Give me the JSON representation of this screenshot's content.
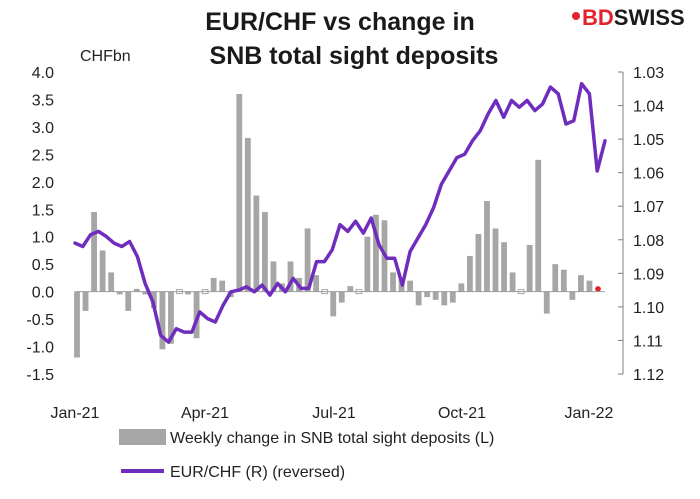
{
  "logo": {
    "text": "BDSWISS",
    "prefix": "BD",
    "suffix": "SWISS",
    "mark_color": "#e3232c",
    "text_color": "#1a1a1a"
  },
  "chart_data": {
    "type": "bar+line",
    "title_line1": "EUR/CHF vs change in",
    "title_line2": "SNB total sight deposits",
    "left_axis": {
      "unit": "CHFbn",
      "ylim": [
        -1.5,
        4.0
      ],
      "ticks": [
        "4.0",
        "3.5",
        "3.0",
        "2.5",
        "2.0",
        "1.5",
        "1.0",
        "0.5",
        "0.0",
        "-0.5",
        "-1.0",
        "-1.5"
      ]
    },
    "right_axis": {
      "reversed": true,
      "ylim": [
        1.03,
        1.12
      ],
      "ticks": [
        "1.03",
        "1.04",
        "1.05",
        "1.06",
        "1.07",
        "1.08",
        "1.09",
        "1.10",
        "1.11",
        "1.12"
      ]
    },
    "x_labels": [
      "Jan-21",
      "Apr-21",
      "Jul-21",
      "Oct-21",
      "Jan-22"
    ],
    "grid": false,
    "legend_placement": "bottom",
    "bar_series": {
      "name": "Weekly change in SNB total sight deposits (L)",
      "color": "#a6a6a6",
      "last_point_color": "#e3232c",
      "values": [
        -1.2,
        -0.35,
        1.45,
        0.75,
        0.35,
        -0.05,
        -0.35,
        0.05,
        -0.05,
        -0.3,
        -1.05,
        -0.95,
        0.0,
        -0.05,
        -0.85,
        0.0,
        0.25,
        0.2,
        -0.1,
        3.6,
        2.8,
        1.75,
        1.45,
        0.55,
        0.15,
        0.55,
        0.25,
        1.15,
        0.3,
        0.0,
        -0.45,
        -0.2,
        0.1,
        0.0,
        1.0,
        1.4,
        1.3,
        0.35,
        0.25,
        0.2,
        -0.25,
        -0.1,
        -0.15,
        -0.25,
        -0.2,
        0.15,
        0.65,
        1.05,
        1.65,
        1.15,
        0.9,
        0.35,
        0.0,
        0.85,
        2.4,
        -0.4,
        0.5,
        0.4,
        -0.15,
        0.3,
        0.2,
        0.1
      ]
    },
    "line_series": {
      "name": "EUR/CHF (R) (reversed)",
      "color": "#6f2dbd",
      "values": [
        1.081,
        1.082,
        1.0785,
        1.0775,
        1.079,
        1.081,
        1.082,
        1.0805,
        1.085,
        1.093,
        1.0985,
        1.1085,
        1.1105,
        1.1065,
        1.1075,
        1.1075,
        1.1015,
        1.1035,
        1.1045,
        1.0995,
        1.0955,
        1.095,
        1.094,
        1.0955,
        1.0935,
        1.0965,
        1.093,
        1.0955,
        1.0915,
        1.0945,
        1.0945,
        1.0865,
        1.0865,
        1.083,
        1.0755,
        1.0775,
        1.0745,
        1.078,
        1.0735,
        1.0815,
        1.0855,
        1.0855,
        1.0935,
        1.0835,
        1.0795,
        1.0755,
        1.0705,
        1.0635,
        1.0595,
        1.0555,
        1.0545,
        1.0505,
        1.0475,
        1.0425,
        1.0385,
        1.0435,
        1.0385,
        1.0405,
        1.0385,
        1.0415,
        1.0395,
        1.0345,
        1.0365,
        1.0455,
        1.0445,
        1.0335,
        1.0365,
        1.0595,
        1.0505
      ]
    }
  }
}
